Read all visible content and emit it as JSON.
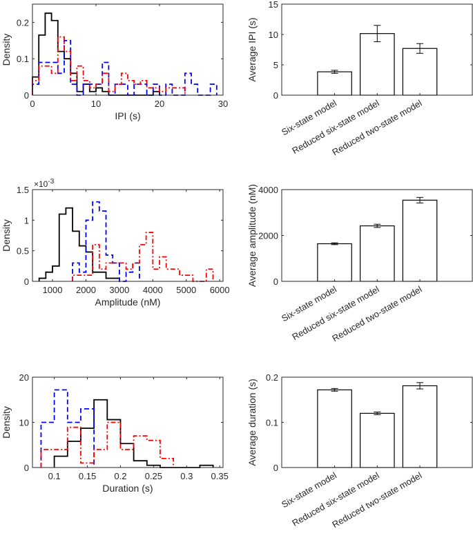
{
  "chart_data": [
    {
      "id": "ipi-hist",
      "type": "histogram",
      "xlabel": "IPI (s)",
      "ylabel": "Density",
      "xlim": [
        0,
        30
      ],
      "ylim": [
        0,
        0.25
      ],
      "xticks": [
        0,
        10,
        20,
        30
      ],
      "yticks": [
        0,
        0.1,
        0.2
      ],
      "xtick_labels": [
        "0",
        "10",
        "20",
        "30"
      ],
      "ytick_labels": [
        "0",
        "0.1",
        "0.2"
      ],
      "series": [
        {
          "color": "#000000",
          "style": "solid",
          "edges": [
            0,
            1,
            2,
            3,
            4,
            5,
            6,
            7,
            8,
            9,
            10,
            11,
            12,
            19,
            20
          ],
          "values": [
            0.05,
            0.165,
            0.225,
            0.205,
            0.12,
            0.1,
            0.06,
            0.01,
            0.03,
            0.01,
            0.02,
            0.01,
            0,
            0.01
          ]
        },
        {
          "color": "#0000ff",
          "style": "dashed",
          "edges": [
            0,
            1,
            2,
            3,
            4,
            5,
            6,
            7,
            8,
            9,
            10,
            11,
            12,
            13,
            14,
            15,
            16,
            17,
            18,
            19,
            20,
            21,
            22,
            23,
            24,
            25,
            26,
            27,
            28,
            29
          ],
          "values": [
            0.03,
            0.09,
            0.09,
            0.09,
            0.06,
            0.15,
            0.03,
            0,
            0.03,
            0.03,
            0.03,
            0.09,
            0,
            0.03,
            0.03,
            0,
            0.03,
            0.03,
            0,
            0.03,
            0,
            0.03,
            0,
            0,
            0.06,
            0.03,
            0,
            0,
            0.03
          ]
        },
        {
          "color": "#ff0000",
          "style": "dashdot",
          "edges": [
            0,
            1,
            2,
            3,
            4,
            5,
            6,
            7,
            8,
            9,
            10,
            11,
            12,
            13,
            14,
            15,
            16,
            17,
            18,
            19,
            20,
            21,
            22,
            23,
            24
          ],
          "values": [
            0.04,
            0.08,
            0.08,
            0.06,
            0.16,
            0.12,
            0.04,
            0.08,
            0.04,
            0.02,
            0.03,
            0.06,
            0.01,
            0.03,
            0.06,
            0.04,
            0.03,
            0.04,
            0.02,
            0.02,
            0.01,
            0.02,
            0.02,
            0.02
          ]
        }
      ]
    },
    {
      "id": "ipi-bar",
      "type": "bar",
      "ylabel": "Average IPI (s)",
      "ylim": [
        0,
        15
      ],
      "yticks": [
        0,
        5,
        10,
        15
      ],
      "ytick_labels": [
        "0",
        "5",
        "10",
        "15"
      ],
      "categories": [
        "Six-state model",
        "Reduced six-state model",
        "Reduced two-state model"
      ],
      "values": [
        3.85,
        10.15,
        7.7
      ],
      "errors": [
        0.25,
        1.35,
        0.8
      ]
    },
    {
      "id": "amplitude-hist",
      "type": "histogram",
      "xlabel": "Amplitude (nM)",
      "ylabel": "Density",
      "yscale_label": "×10",
      "yscale_exponent": "-3",
      "xlim": [
        400,
        6100
      ],
      "ylim": [
        0,
        1.5
      ],
      "xticks": [
        1000,
        2000,
        3000,
        4000,
        5000,
        6000
      ],
      "yticks": [
        0,
        0.5,
        1,
        1.5
      ],
      "xtick_labels": [
        "1000",
        "2000",
        "3000",
        "4000",
        "5000",
        "6000"
      ],
      "ytick_labels": [
        "0",
        "0.5",
        "1",
        "1.5"
      ],
      "series": [
        {
          "color": "#000000",
          "style": "solid",
          "edges": [
            600,
            800,
            1000,
            1200,
            1400,
            1600,
            1800,
            2000,
            2200,
            2600,
            3000
          ],
          "values": [
            0.05,
            0.15,
            0.25,
            1.1,
            1.2,
            0.82,
            0.58,
            0.48,
            0.15,
            0.05
          ]
        },
        {
          "color": "#0000ff",
          "style": "dashed",
          "edges": [
            1600,
            1800,
            2000,
            2200,
            2400,
            2600,
            2800,
            3000,
            3200,
            3400,
            3600
          ],
          "values": [
            0.3,
            0.15,
            1.0,
            1.3,
            1.15,
            0.43,
            0.3,
            0,
            0.15,
            0.3
          ]
        },
        {
          "color": "#ff0000",
          "style": "dashdot",
          "edges": [
            1600,
            2200,
            2400,
            2600,
            3200,
            3400,
            3600,
            3800,
            4000,
            4200,
            4400,
            4800,
            5200,
            5600,
            5800
          ],
          "values": [
            0.1,
            0.6,
            0.2,
            0.3,
            0.2,
            0.3,
            0.6,
            0.8,
            0.2,
            0.4,
            0.2,
            0.1,
            0,
            0.2
          ]
        }
      ]
    },
    {
      "id": "amplitude-bar",
      "type": "bar",
      "ylabel": "Average amplitude (nM)",
      "ylim": [
        0,
        4000
      ],
      "yticks": [
        0,
        2000,
        4000
      ],
      "ytick_labels": [
        "0",
        "2000",
        "4000"
      ],
      "categories": [
        "Six-state model",
        "Reduced six-state model",
        "Reduced two-state model"
      ],
      "values": [
        1640,
        2420,
        3540
      ],
      "errors": [
        40,
        70,
        120
      ]
    },
    {
      "id": "duration-hist",
      "type": "histogram",
      "xlabel": "Duration (s)",
      "ylabel": "Density",
      "xlim": [
        0.067,
        0.355
      ],
      "ylim": [
        0,
        20
      ],
      "xticks": [
        0.1,
        0.15,
        0.2,
        0.25,
        0.3,
        0.35
      ],
      "yticks": [
        0,
        10,
        20
      ],
      "xtick_labels": [
        "0.1",
        "0.15",
        "0.2",
        "0.25",
        "0.3",
        "0.35"
      ],
      "ytick_labels": [
        "0",
        "10",
        "20"
      ],
      "series": [
        {
          "color": "#000000",
          "style": "solid",
          "edges": [
            0.1,
            0.12,
            0.14,
            0.16,
            0.18,
            0.2,
            0.22,
            0.24,
            0.26,
            0.32,
            0.34
          ],
          "values": [
            2.5,
            5.8,
            8.7,
            15,
            10.6,
            5.3,
            1.5,
            0.5,
            0,
            0.5
          ]
        },
        {
          "color": "#0000ff",
          "style": "dashed",
          "edges": [
            0.08,
            0.1,
            0.12,
            0.14,
            0.16
          ],
          "values": [
            10,
            17.2,
            10,
            13
          ]
        },
        {
          "color": "#ff0000",
          "style": "dashdot",
          "edges": [
            0.08,
            0.12,
            0.14,
            0.16,
            0.18,
            0.2,
            0.22,
            0.24,
            0.26,
            0.28
          ],
          "values": [
            4,
            8.9,
            1,
            4,
            10,
            4,
            7,
            6,
            2
          ]
        }
      ]
    },
    {
      "id": "duration-bar",
      "type": "bar",
      "ylabel": "Average duration (s)",
      "ylim": [
        0,
        0.2
      ],
      "yticks": [
        0,
        0.1,
        0.2
      ],
      "ytick_labels": [
        "0",
        "0.1",
        "0.2"
      ],
      "categories": [
        "Six-state model",
        "Reduced six-state model",
        "Reduced two-state model"
      ],
      "values": [
        0.172,
        0.12,
        0.181
      ],
      "errors": [
        0.003,
        0.003,
        0.007
      ]
    }
  ]
}
